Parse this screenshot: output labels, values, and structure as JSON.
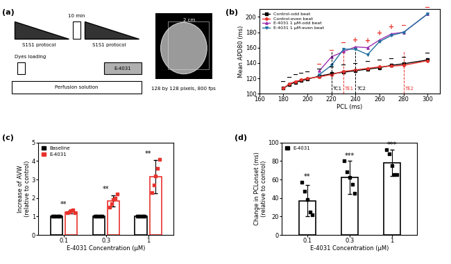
{
  "panel_labels": [
    "(a)",
    "(b)",
    "(c)",
    "(d)"
  ],
  "diagram": {
    "protocol_1": "S1S1 protocol",
    "protocol_2": "S1S1 protocol",
    "interval": "10 min",
    "dyes": "Dyes loading",
    "drug": "E-4031",
    "perfusion": "Perfusion solution",
    "scale_bar": "2 cm",
    "image_caption": "128 by 128 pixels, 800 fps"
  },
  "chart_data": [
    {
      "type": "line",
      "xlabel": "PCL (ms)",
      "ylabel": "Mean APD80 (ms)",
      "xlim": [
        160,
        310
      ],
      "xticks": [
        160,
        180,
        200,
        220,
        240,
        260,
        280,
        300
      ],
      "ylim": [
        100,
        210
      ],
      "yticks": [
        100,
        120,
        140,
        160,
        180,
        200
      ],
      "legend": "upper left",
      "series": [
        {
          "name": "Control-odd beat",
          "color": "#000000",
          "marker": "square",
          "x": [
            180,
            185,
            190,
            195,
            200,
            210,
            220,
            230,
            240,
            250,
            260,
            270,
            280,
            300
          ],
          "values": [
            107,
            112,
            115,
            117,
            119,
            123,
            126,
            128,
            130,
            132,
            134,
            137,
            139,
            144
          ]
        },
        {
          "name": "Control-even beat",
          "color": "#e8322c",
          "marker": "circle",
          "x": [
            180,
            185,
            190,
            195,
            200,
            210,
            220,
            230,
            240,
            250,
            260,
            270,
            280,
            300
          ],
          "values": [
            107,
            113,
            116,
            118,
            120,
            122,
            125,
            129,
            131,
            133,
            135,
            136,
            137,
            143
          ]
        },
        {
          "name": "E-4031 1 μM-odd beat",
          "color": "#9b30b0",
          "marker": "triangle_up",
          "x": [
            210,
            220,
            230,
            240,
            250,
            260,
            270,
            280,
            300
          ],
          "values": [
            130,
            148,
            155,
            161,
            160,
            170,
            178,
            180,
            204
          ]
        },
        {
          "name": "E-4031 1 μM-even beat",
          "color": "#1f6f9f",
          "marker": "triangle_down",
          "x": [
            210,
            220,
            230,
            240,
            250,
            260,
            270,
            280,
            300
          ],
          "values": [
            125,
            137,
            158,
            158,
            151,
            168,
            176,
            180,
            204
          ]
        }
      ],
      "annotations": [
        {
          "x": 220,
          "text": "TC1",
          "color": "#000000"
        },
        {
          "x": 230,
          "text": "TE1",
          "color": "#e8322c"
        },
        {
          "x": 240,
          "text": "TC2",
          "color": "#000000"
        },
        {
          "x": 280,
          "text": "TE2",
          "color": "#e8322c"
        }
      ],
      "alternans": [
        {
          "color": "#000000",
          "above": [
            "Control-odd beat",
            "Control-even beat"
          ],
          "x": [
            180,
            185,
            190,
            195,
            200,
            210,
            220,
            230,
            240,
            250,
            260,
            270,
            280,
            300
          ],
          "signs": [
            "−",
            "−",
            "−",
            "−",
            "−",
            "−",
            "−",
            "−",
            "−",
            "−",
            "−",
            "−",
            "−",
            "−"
          ]
        },
        {
          "color": "#e8322c",
          "above": [
            "E-4031 1 μM-odd beat",
            "E-4031 1 μM-even beat"
          ],
          "x": [
            210,
            220,
            230,
            240,
            250,
            260,
            270,
            280,
            300
          ],
          "signs": [
            "−",
            "−",
            "−",
            "+",
            "+",
            "+",
            "+",
            "−",
            "−"
          ]
        }
      ]
    },
    {
      "type": "bar",
      "xlabel": "E-4031 Concentration (μM)",
      "ylabel": "Increase of AVW\n(relative to control)",
      "categories": [
        "0.1",
        "0.3",
        "1"
      ],
      "ylim": [
        0,
        5
      ],
      "yticks": [
        0,
        1,
        2,
        3,
        4,
        5
      ],
      "legend": "upper left",
      "series": [
        {
          "name": "Baseline",
          "color": "#000000",
          "values": [
            1,
            1,
            1
          ],
          "errors": [
            0,
            0,
            0
          ],
          "points": [
            [
              1,
              1,
              1,
              1,
              1
            ],
            [
              1,
              1,
              1,
              1,
              1
            ],
            [
              1,
              1,
              1,
              1,
              1
            ]
          ]
        },
        {
          "name": "E-4031",
          "color": "#e8322c",
          "values": [
            1.25,
            1.85,
            3.15
          ],
          "errors": [
            0.1,
            0.3,
            0.9
          ],
          "points": [
            [
              1.2,
              1.25,
              1.3,
              1.35,
              1.2
            ],
            [
              1.5,
              1.7,
              1.9,
              2.0,
              2.2
            ],
            [
              2.3,
              2.7,
              3.2,
              3.6,
              4.1
            ]
          ]
        }
      ],
      "significance": [
        "**",
        "**",
        "**"
      ]
    },
    {
      "type": "bar",
      "xlabel": "E-4031 Concentration (μM)",
      "ylabel": "Change in PCLonset (ms)\n(relative to control)",
      "categories": [
        "0.1",
        "0.3",
        "1"
      ],
      "ylim": [
        0,
        100
      ],
      "yticks": [
        0,
        20,
        40,
        60,
        80,
        100
      ],
      "legend": "upper left",
      "series": [
        {
          "name": "E-4031",
          "color": "#000000",
          "values": [
            37,
            62,
            78
          ],
          "errors": [
            17,
            18,
            14
          ],
          "points": [
            [
              57,
              47,
              38,
              25,
              22
            ],
            [
              80,
              68,
              62,
              55,
              45
            ],
            [
              92,
              88,
              75,
              65,
              65
            ]
          ]
        }
      ],
      "significance": [
        "**",
        "***",
        "***"
      ]
    }
  ]
}
